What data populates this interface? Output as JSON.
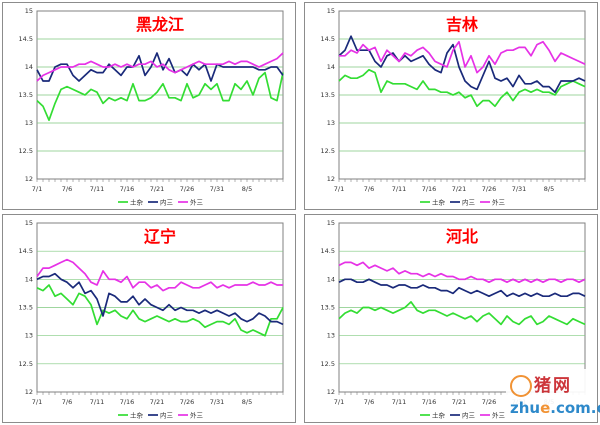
{
  "chart_data": [
    {
      "type": "line",
      "title": "黑龙江",
      "ylim": [
        12,
        15
      ],
      "yticks": [
        12,
        12.5,
        13,
        13.5,
        14,
        14.5,
        15
      ],
      "xticks": [
        "7/1",
        "7/6",
        "7/11",
        "7/16",
        "7/21",
        "7/26",
        "7/31",
        "8/5"
      ],
      "grid": true,
      "legend_position": "bottom",
      "series": [
        {
          "name": "土杂",
          "color": "#33dd33",
          "values": [
            13.4,
            13.3,
            13.05,
            13.35,
            13.6,
            13.65,
            13.6,
            13.55,
            13.5,
            13.6,
            13.55,
            13.35,
            13.45,
            13.4,
            13.45,
            13.4,
            13.7,
            13.4,
            13.4,
            13.45,
            13.55,
            13.7,
            13.45,
            13.45,
            13.4,
            13.7,
            13.45,
            13.5,
            13.7,
            13.6,
            13.7,
            13.4,
            13.4,
            13.7,
            13.6,
            13.75,
            13.5,
            13.8,
            13.9,
            13.45,
            13.4,
            13.9
          ]
        },
        {
          "name": "内三",
          "color": "#1a2a7a",
          "values": [
            13.95,
            13.75,
            13.75,
            14.0,
            14.05,
            14.05,
            13.85,
            13.75,
            13.85,
            13.95,
            13.9,
            13.9,
            14.05,
            13.95,
            13.85,
            14.0,
            14.0,
            14.2,
            13.85,
            14.0,
            14.25,
            13.95,
            14.15,
            13.9,
            13.95,
            13.85,
            14.05,
            13.95,
            14.05,
            13.75,
            14.05,
            14.0,
            14.0,
            14.0,
            14.0,
            14.0,
            14.0,
            13.95,
            13.95,
            14.0,
            14.0,
            13.85
          ]
        },
        {
          "name": "外三",
          "color": "#e632e6",
          "values": [
            13.75,
            13.85,
            13.9,
            13.95,
            14.0,
            14.0,
            14.0,
            14.05,
            14.05,
            14.1,
            14.05,
            14.0,
            14.0,
            14.05,
            14.0,
            14.05,
            14.0,
            14.05,
            14.05,
            14.1,
            14.0,
            14.05,
            13.95,
            13.9,
            13.95,
            14.0,
            14.05,
            14.1,
            14.05,
            14.05,
            14.05,
            14.05,
            14.1,
            14.05,
            14.1,
            14.1,
            14.05,
            14.0,
            14.05,
            14.1,
            14.15,
            14.25
          ]
        }
      ]
    },
    {
      "type": "line",
      "title": "吉林",
      "ylim": [
        12,
        15
      ],
      "yticks": [
        12,
        12.5,
        13,
        13.5,
        14,
        14.5,
        15
      ],
      "xticks": [
        "7/1",
        "7/6",
        "7/11",
        "7/16",
        "7/21",
        "7/26",
        "7/31",
        "8/5"
      ],
      "grid": true,
      "legend_position": "bottom",
      "series": [
        {
          "name": "土杂",
          "color": "#33dd33",
          "values": [
            13.75,
            13.85,
            13.8,
            13.8,
            13.85,
            13.95,
            13.9,
            13.55,
            13.75,
            13.7,
            13.7,
            13.7,
            13.65,
            13.6,
            13.75,
            13.6,
            13.6,
            13.55,
            13.55,
            13.5,
            13.55,
            13.45,
            13.5,
            13.3,
            13.4,
            13.4,
            13.3,
            13.45,
            13.55,
            13.4,
            13.55,
            13.6,
            13.55,
            13.6,
            13.55,
            13.55,
            13.5,
            13.65,
            13.7,
            13.75,
            13.7,
            13.65
          ]
        },
        {
          "name": "内三",
          "color": "#1a2a7a",
          "values": [
            14.2,
            14.3,
            14.55,
            14.3,
            14.3,
            14.3,
            14.1,
            14.0,
            14.2,
            14.25,
            14.1,
            14.2,
            14.1,
            14.15,
            14.2,
            14.05,
            13.95,
            13.9,
            14.25,
            14.4,
            14.0,
            13.75,
            13.65,
            13.6,
            13.85,
            14.1,
            13.8,
            13.75,
            13.8,
            13.65,
            13.85,
            13.7,
            13.7,
            13.75,
            13.65,
            13.65,
            13.55,
            13.75,
            13.75,
            13.75,
            13.8,
            13.75
          ]
        },
        {
          "name": "外三",
          "color": "#e632e6",
          "values": [
            14.2,
            14.2,
            14.3,
            14.25,
            14.4,
            14.3,
            14.35,
            14.1,
            14.3,
            14.2,
            14.1,
            14.25,
            14.2,
            14.3,
            14.35,
            14.25,
            14.1,
            14.05,
            14.0,
            14.3,
            14.45,
            14.0,
            14.2,
            13.9,
            14.0,
            14.2,
            14.05,
            14.25,
            14.3,
            14.3,
            14.35,
            14.35,
            14.2,
            14.4,
            14.45,
            14.3,
            14.1,
            14.25,
            14.2,
            14.15,
            14.1,
            14.05
          ]
        }
      ]
    },
    {
      "type": "line",
      "title": "辽宁",
      "ylim": [
        12,
        15
      ],
      "yticks": [
        12,
        12.5,
        13,
        13.5,
        14,
        14.5,
        15
      ],
      "xticks": [
        "7/1",
        "7/6",
        "7/11",
        "7/16",
        "7/21",
        "7/26",
        "7/31",
        "8/5"
      ],
      "grid": true,
      "legend_position": "bottom",
      "series": [
        {
          "name": "土杂",
          "color": "#33dd33",
          "values": [
            13.85,
            13.8,
            13.9,
            13.7,
            13.75,
            13.65,
            13.55,
            13.75,
            13.7,
            13.55,
            13.2,
            13.45,
            13.4,
            13.45,
            13.35,
            13.3,
            13.45,
            13.3,
            13.25,
            13.3,
            13.35,
            13.3,
            13.25,
            13.3,
            13.25,
            13.25,
            13.3,
            13.25,
            13.15,
            13.2,
            13.25,
            13.25,
            13.2,
            13.3,
            13.1,
            13.05,
            13.1,
            13.05,
            13.0,
            13.3,
            13.3,
            13.5
          ]
        },
        {
          "name": "内三",
          "color": "#1a2a7a",
          "values": [
            14.0,
            14.05,
            14.05,
            14.1,
            14.0,
            13.95,
            13.85,
            13.95,
            13.75,
            13.8,
            13.65,
            13.35,
            13.75,
            13.7,
            13.6,
            13.6,
            13.7,
            13.55,
            13.65,
            13.55,
            13.5,
            13.45,
            13.55,
            13.45,
            13.5,
            13.45,
            13.45,
            13.4,
            13.45,
            13.4,
            13.45,
            13.4,
            13.35,
            13.4,
            13.3,
            13.25,
            13.3,
            13.4,
            13.35,
            13.25,
            13.25,
            13.2
          ]
        },
        {
          "name": "外三",
          "color": "#e632e6",
          "values": [
            14.05,
            14.2,
            14.2,
            14.25,
            14.3,
            14.35,
            14.3,
            14.2,
            14.1,
            13.95,
            13.9,
            14.15,
            14.0,
            14.0,
            13.95,
            14.05,
            13.85,
            13.95,
            13.95,
            13.85,
            13.9,
            13.8,
            13.85,
            13.85,
            13.95,
            13.9,
            13.85,
            13.85,
            13.9,
            13.95,
            13.85,
            13.9,
            13.85,
            13.9,
            13.9,
            13.9,
            13.95,
            13.9,
            13.9,
            13.95,
            13.9,
            13.9
          ]
        }
      ]
    },
    {
      "type": "line",
      "title": "河北",
      "ylim": [
        12,
        15
      ],
      "yticks": [
        12,
        12.5,
        13,
        13.5,
        14,
        14.5,
        15
      ],
      "xticks": [
        "7/1",
        "7/6",
        "7/11",
        "7/16",
        "7/21",
        "7/26",
        "7/31",
        "8/5"
      ],
      "grid": true,
      "legend_position": "bottom",
      "series": [
        {
          "name": "土杂",
          "color": "#33dd33",
          "values": [
            13.3,
            13.4,
            13.45,
            13.4,
            13.5,
            13.5,
            13.45,
            13.5,
            13.45,
            13.4,
            13.45,
            13.5,
            13.6,
            13.45,
            13.4,
            13.45,
            13.45,
            13.4,
            13.35,
            13.4,
            13.35,
            13.3,
            13.35,
            13.25,
            13.35,
            13.4,
            13.3,
            13.2,
            13.35,
            13.25,
            13.2,
            13.3,
            13.35,
            13.2,
            13.25,
            13.35,
            13.3,
            13.25,
            13.2,
            13.3,
            13.25,
            13.2
          ]
        },
        {
          "name": "内三",
          "color": "#1a2a7a",
          "values": [
            13.95,
            14.0,
            14.0,
            13.95,
            13.95,
            14.0,
            13.95,
            13.9,
            13.9,
            13.85,
            13.9,
            13.9,
            13.85,
            13.85,
            13.9,
            13.85,
            13.85,
            13.8,
            13.8,
            13.75,
            13.85,
            13.8,
            13.75,
            13.8,
            13.75,
            13.7,
            13.75,
            13.8,
            13.7,
            13.75,
            13.7,
            13.75,
            13.7,
            13.75,
            13.7,
            13.7,
            13.75,
            13.7,
            13.7,
            13.75,
            13.75,
            13.7
          ]
        },
        {
          "name": "外三",
          "color": "#e632e6",
          "values": [
            14.25,
            14.3,
            14.3,
            14.25,
            14.3,
            14.2,
            14.25,
            14.2,
            14.15,
            14.2,
            14.1,
            14.15,
            14.1,
            14.1,
            14.05,
            14.1,
            14.05,
            14.1,
            14.05,
            14.05,
            14.0,
            14.0,
            14.05,
            14.0,
            14.0,
            13.95,
            14.0,
            14.0,
            13.95,
            14.0,
            13.95,
            14.0,
            13.95,
            14.0,
            13.95,
            14.0,
            14.0,
            13.95,
            14.0,
            14.0,
            13.95,
            14.0
          ]
        }
      ]
    }
  ],
  "watermark": {
    "top_text": "猪网",
    "bottom_prefix": "zhu",
    "bottom_e": "e",
    "bottom_suffix": ".com.cn"
  }
}
